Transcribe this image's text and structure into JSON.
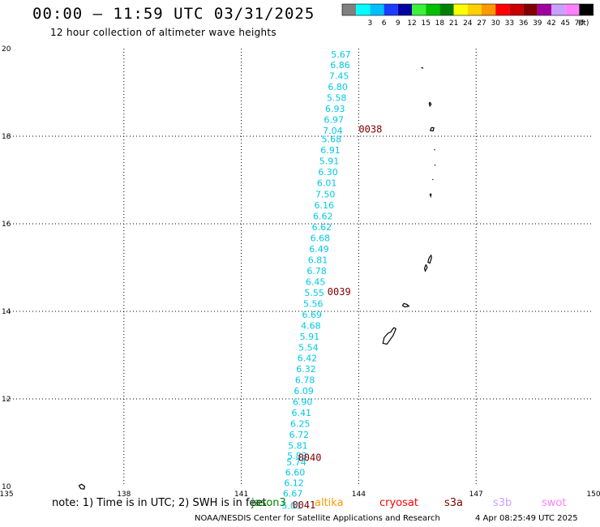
{
  "header": {
    "title": "00:00 – 11:59 UTC 03/31/2025",
    "subtitle": "12 hour collection of altimeter wave heights"
  },
  "colorbar": {
    "unit": "(ft)",
    "bins": [
      {
        "label": "",
        "color": "#808080"
      },
      {
        "label": "3",
        "color": "#00ffff"
      },
      {
        "label": "6",
        "color": "#00bfff"
      },
      {
        "label": "9",
        "color": "#1c3cff"
      },
      {
        "label": "12",
        "color": "#0000a0"
      },
      {
        "label": "15",
        "color": "#3cf03c"
      },
      {
        "label": "18",
        "color": "#00c000"
      },
      {
        "label": "21",
        "color": "#008000"
      },
      {
        "label": "24",
        "color": "#ffff00"
      },
      {
        "label": "27",
        "color": "#ffd000"
      },
      {
        "label": "30",
        "color": "#ff9900"
      },
      {
        "label": "33",
        "color": "#ff0000"
      },
      {
        "label": "36",
        "color": "#c80000"
      },
      {
        "label": "39",
        "color": "#800000"
      },
      {
        "label": "42",
        "color": "#a000a0"
      },
      {
        "label": "45",
        "color": "#c8a0ff"
      },
      {
        "label": "70",
        "color": "#ff80ff"
      },
      {
        "label": "",
        "color": "#000000"
      }
    ]
  },
  "map": {
    "lon_ticks": [
      "135",
      "138",
      "141",
      "144",
      "147",
      "150"
    ],
    "lat_ticks": [
      "20",
      "18",
      "16",
      "14",
      "12",
      "10"
    ],
    "lon_range": [
      135,
      150
    ],
    "lat_range": [
      10,
      20
    ],
    "grid": "dotted",
    "track_color": "#00c8e6",
    "time_label_color": "#800000",
    "track_points": [
      {
        "lat": 19.8,
        "lon": 143.8,
        "swh": "5.67"
      },
      {
        "lat": 19.56,
        "lon": 143.78,
        "swh": "6.86"
      },
      {
        "lat": 19.31,
        "lon": 143.75,
        "swh": "7.45"
      },
      {
        "lat": 19.06,
        "lon": 143.72,
        "swh": "6.80"
      },
      {
        "lat": 18.81,
        "lon": 143.69,
        "swh": "5.58"
      },
      {
        "lat": 18.56,
        "lon": 143.65,
        "swh": "6.93"
      },
      {
        "lat": 18.31,
        "lon": 143.62,
        "swh": "6.97"
      },
      {
        "lat": 18.06,
        "lon": 143.59,
        "swh": "7.04"
      },
      {
        "lat": 17.86,
        "lon": 143.56,
        "swh": "5.68"
      },
      {
        "lat": 17.61,
        "lon": 143.53,
        "swh": "6.91"
      },
      {
        "lat": 17.36,
        "lon": 143.5,
        "swh": "5.91"
      },
      {
        "lat": 17.11,
        "lon": 143.47,
        "swh": "6.30"
      },
      {
        "lat": 16.86,
        "lon": 143.44,
        "swh": "6.01"
      },
      {
        "lat": 16.6,
        "lon": 143.4,
        "swh": "7.50"
      },
      {
        "lat": 16.35,
        "lon": 143.37,
        "swh": "6.16"
      },
      {
        "lat": 16.1,
        "lon": 143.34,
        "swh": "6.62"
      },
      {
        "lat": 15.85,
        "lon": 143.31,
        "swh": "6.62"
      },
      {
        "lat": 15.6,
        "lon": 143.27,
        "swh": "6.68"
      },
      {
        "lat": 15.35,
        "lon": 143.24,
        "swh": "6.49"
      },
      {
        "lat": 15.1,
        "lon": 143.21,
        "swh": "6.81"
      },
      {
        "lat": 14.85,
        "lon": 143.18,
        "swh": "6.78"
      },
      {
        "lat": 14.6,
        "lon": 143.15,
        "swh": "6.45"
      },
      {
        "lat": 14.35,
        "lon": 143.12,
        "swh": "5.55"
      },
      {
        "lat": 14.1,
        "lon": 143.09,
        "swh": "5.56"
      },
      {
        "lat": 13.85,
        "lon": 143.06,
        "swh": "6.69"
      },
      {
        "lat": 13.6,
        "lon": 143.03,
        "swh": "4.68"
      },
      {
        "lat": 13.35,
        "lon": 143.0,
        "swh": "5.91"
      },
      {
        "lat": 13.1,
        "lon": 142.97,
        "swh": "5.54"
      },
      {
        "lat": 12.86,
        "lon": 142.94,
        "swh": "6.42"
      },
      {
        "lat": 12.61,
        "lon": 142.91,
        "swh": "6.32"
      },
      {
        "lat": 12.36,
        "lon": 142.88,
        "swh": "6.78"
      },
      {
        "lat": 12.11,
        "lon": 142.85,
        "swh": "6.09"
      },
      {
        "lat": 11.86,
        "lon": 142.82,
        "swh": "6.90"
      },
      {
        "lat": 11.61,
        "lon": 142.79,
        "swh": "6.41"
      },
      {
        "lat": 11.36,
        "lon": 142.76,
        "swh": "6.25"
      },
      {
        "lat": 11.11,
        "lon": 142.73,
        "swh": "6.72"
      },
      {
        "lat": 10.86,
        "lon": 142.7,
        "swh": "5.81"
      },
      {
        "lat": 10.63,
        "lon": 142.68,
        "swh": "5.83"
      },
      {
        "lat": 10.48,
        "lon": 142.66,
        "swh": "5.74"
      },
      {
        "lat": 10.25,
        "lon": 142.63,
        "swh": "6.60"
      },
      {
        "lat": 10.01,
        "lon": 142.6,
        "swh": "6.12"
      },
      {
        "lat": 9.77,
        "lon": 142.57,
        "swh": "6.67"
      },
      {
        "lat": 9.49,
        "lon": 142.54,
        "swh": "5.01"
      }
    ],
    "time_labels": [
      {
        "lat": 18.08,
        "lon": 144.0,
        "text": "0038"
      },
      {
        "lat": 14.37,
        "lon": 143.2,
        "text": "0039"
      },
      {
        "lat": 10.58,
        "lon": 142.45,
        "text": "0040"
      },
      {
        "lat": 9.5,
        "lon": 142.3,
        "text": "0041"
      }
    ],
    "coastlines": [
      {
        "name": "farallon-de-pajaros",
        "points": [
          [
            145.6,
            19.57
          ],
          [
            145.65,
            19.55
          ]
        ]
      },
      {
        "name": "maug",
        "points": [
          [
            145.82,
            18.78
          ],
          [
            145.85,
            18.73
          ],
          [
            145.82,
            18.69
          ],
          [
            145.8,
            18.74
          ],
          [
            145.82,
            18.78
          ]
        ]
      },
      {
        "name": "agrihan",
        "points": [
          [
            145.86,
            18.2
          ],
          [
            145.92,
            18.19
          ],
          [
            145.9,
            18.12
          ],
          [
            145.83,
            18.13
          ],
          [
            145.86,
            18.2
          ]
        ]
      },
      {
        "name": "pagan",
        "points": [
          [
            145.93,
            17.7
          ],
          [
            145.95,
            17.68
          ]
        ]
      },
      {
        "name": "alamagan",
        "points": [
          [
            145.94,
            17.35
          ],
          [
            145.96,
            17.33
          ]
        ]
      },
      {
        "name": "guguan",
        "points": [
          [
            145.89,
            17.02
          ],
          [
            145.9,
            17.0
          ]
        ]
      },
      {
        "name": "sarigan",
        "points": [
          [
            145.82,
            16.68
          ],
          [
            145.85,
            16.68
          ],
          [
            145.84,
            16.63
          ],
          [
            145.82,
            16.68
          ]
        ]
      },
      {
        "name": "saipan",
        "points": [
          [
            145.82,
            15.25
          ],
          [
            145.85,
            15.28
          ],
          [
            145.86,
            15.22
          ],
          [
            145.82,
            15.1
          ],
          [
            145.77,
            15.12
          ],
          [
            145.79,
            15.2
          ],
          [
            145.82,
            15.25
          ]
        ]
      },
      {
        "name": "tinian",
        "points": [
          [
            145.72,
            15.07
          ],
          [
            145.75,
            15.0
          ],
          [
            145.7,
            14.92
          ],
          [
            145.68,
            14.98
          ],
          [
            145.72,
            15.07
          ]
        ]
      },
      {
        "name": "rota",
        "points": [
          [
            145.15,
            14.18
          ],
          [
            145.23,
            14.16
          ],
          [
            145.28,
            14.12
          ],
          [
            145.18,
            14.1
          ],
          [
            145.12,
            14.13
          ],
          [
            145.15,
            14.18
          ]
        ]
      },
      {
        "name": "guam",
        "points": [
          [
            144.9,
            13.63
          ],
          [
            144.95,
            13.6
          ],
          [
            144.88,
            13.45
          ],
          [
            144.72,
            13.25
          ],
          [
            144.62,
            13.27
          ],
          [
            144.65,
            13.4
          ],
          [
            144.75,
            13.5
          ],
          [
            144.82,
            13.53
          ],
          [
            144.9,
            13.63
          ]
        ]
      },
      {
        "name": "west-islet",
        "points": [
          [
            136.85,
            10.02
          ],
          [
            136.92,
            10.05
          ],
          [
            137.0,
            10.0
          ],
          [
            136.98,
            9.94
          ],
          [
            136.9,
            9.95
          ],
          [
            136.85,
            10.02
          ]
        ]
      }
    ]
  },
  "footer": {
    "note": "note: 1) Time is in UTC; 2) SWH is in feet",
    "missions": [
      {
        "name": "jason3",
        "color": "#008000"
      },
      {
        "name": "altika",
        "color": "#ff9900"
      },
      {
        "name": "cryosat",
        "color": "#ff0000"
      },
      {
        "name": "s3a",
        "color": "#800000"
      },
      {
        "name": "s3b",
        "color": "#c8a0ff"
      },
      {
        "name": "swot",
        "color": "#ff80ff"
      }
    ],
    "credit": "NOAA/NESDIS Center for Satellite Applications and Research",
    "timestamp": "4 Apr 08:25:49 UTC 2025"
  }
}
